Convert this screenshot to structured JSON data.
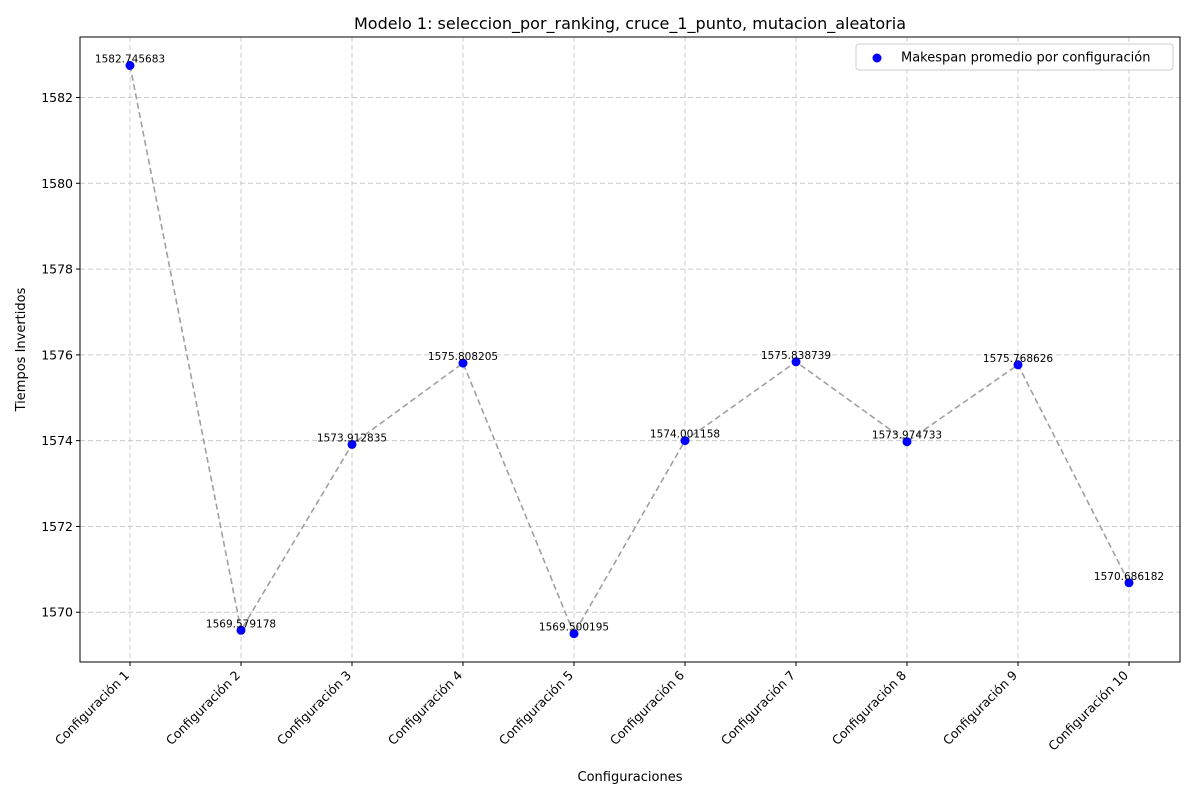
{
  "chart_data": {
    "type": "scatter",
    "title": "Modelo 1: seleccion_por_ranking, cruce_1_punto, mutacion_aleatoria",
    "xlabel": "Configuraciones",
    "ylabel": "Tiempos Invertidos",
    "categories": [
      "Configuración 1",
      "Configuración 2",
      "Configuración 3",
      "Configuración 4",
      "Configuración 5",
      "Configuración 6",
      "Configuración 7",
      "Configuración 8",
      "Configuración 9",
      "Configuración 10"
    ],
    "series": [
      {
        "name": "Makespan promedio por configuración",
        "values": [
          1582.745683,
          1569.579178,
          1573.912835,
          1575.808205,
          1569.500195,
          1574.001158,
          1575.838739,
          1573.974733,
          1575.768626,
          1570.686182
        ],
        "labels": [
          "1582.745683",
          "1569.579178",
          "1573.912835",
          "1575.808205",
          "1569.500195",
          "1574.001158",
          "1575.838739",
          "1573.974733",
          "1575.768626",
          "1570.686182"
        ],
        "marker_color": "#0000ff",
        "line_color": "#a0a0a0",
        "line_style": "dashed"
      }
    ],
    "ylim": [
      1568.84,
      1583.41
    ],
    "yticks": [
      1570,
      1572,
      1574,
      1576,
      1578,
      1580,
      1582
    ],
    "ytick_labels": [
      "1570",
      "1572",
      "1574",
      "1576",
      "1578",
      "1580",
      "1582"
    ],
    "grid": true,
    "legend_position": "top-right"
  }
}
